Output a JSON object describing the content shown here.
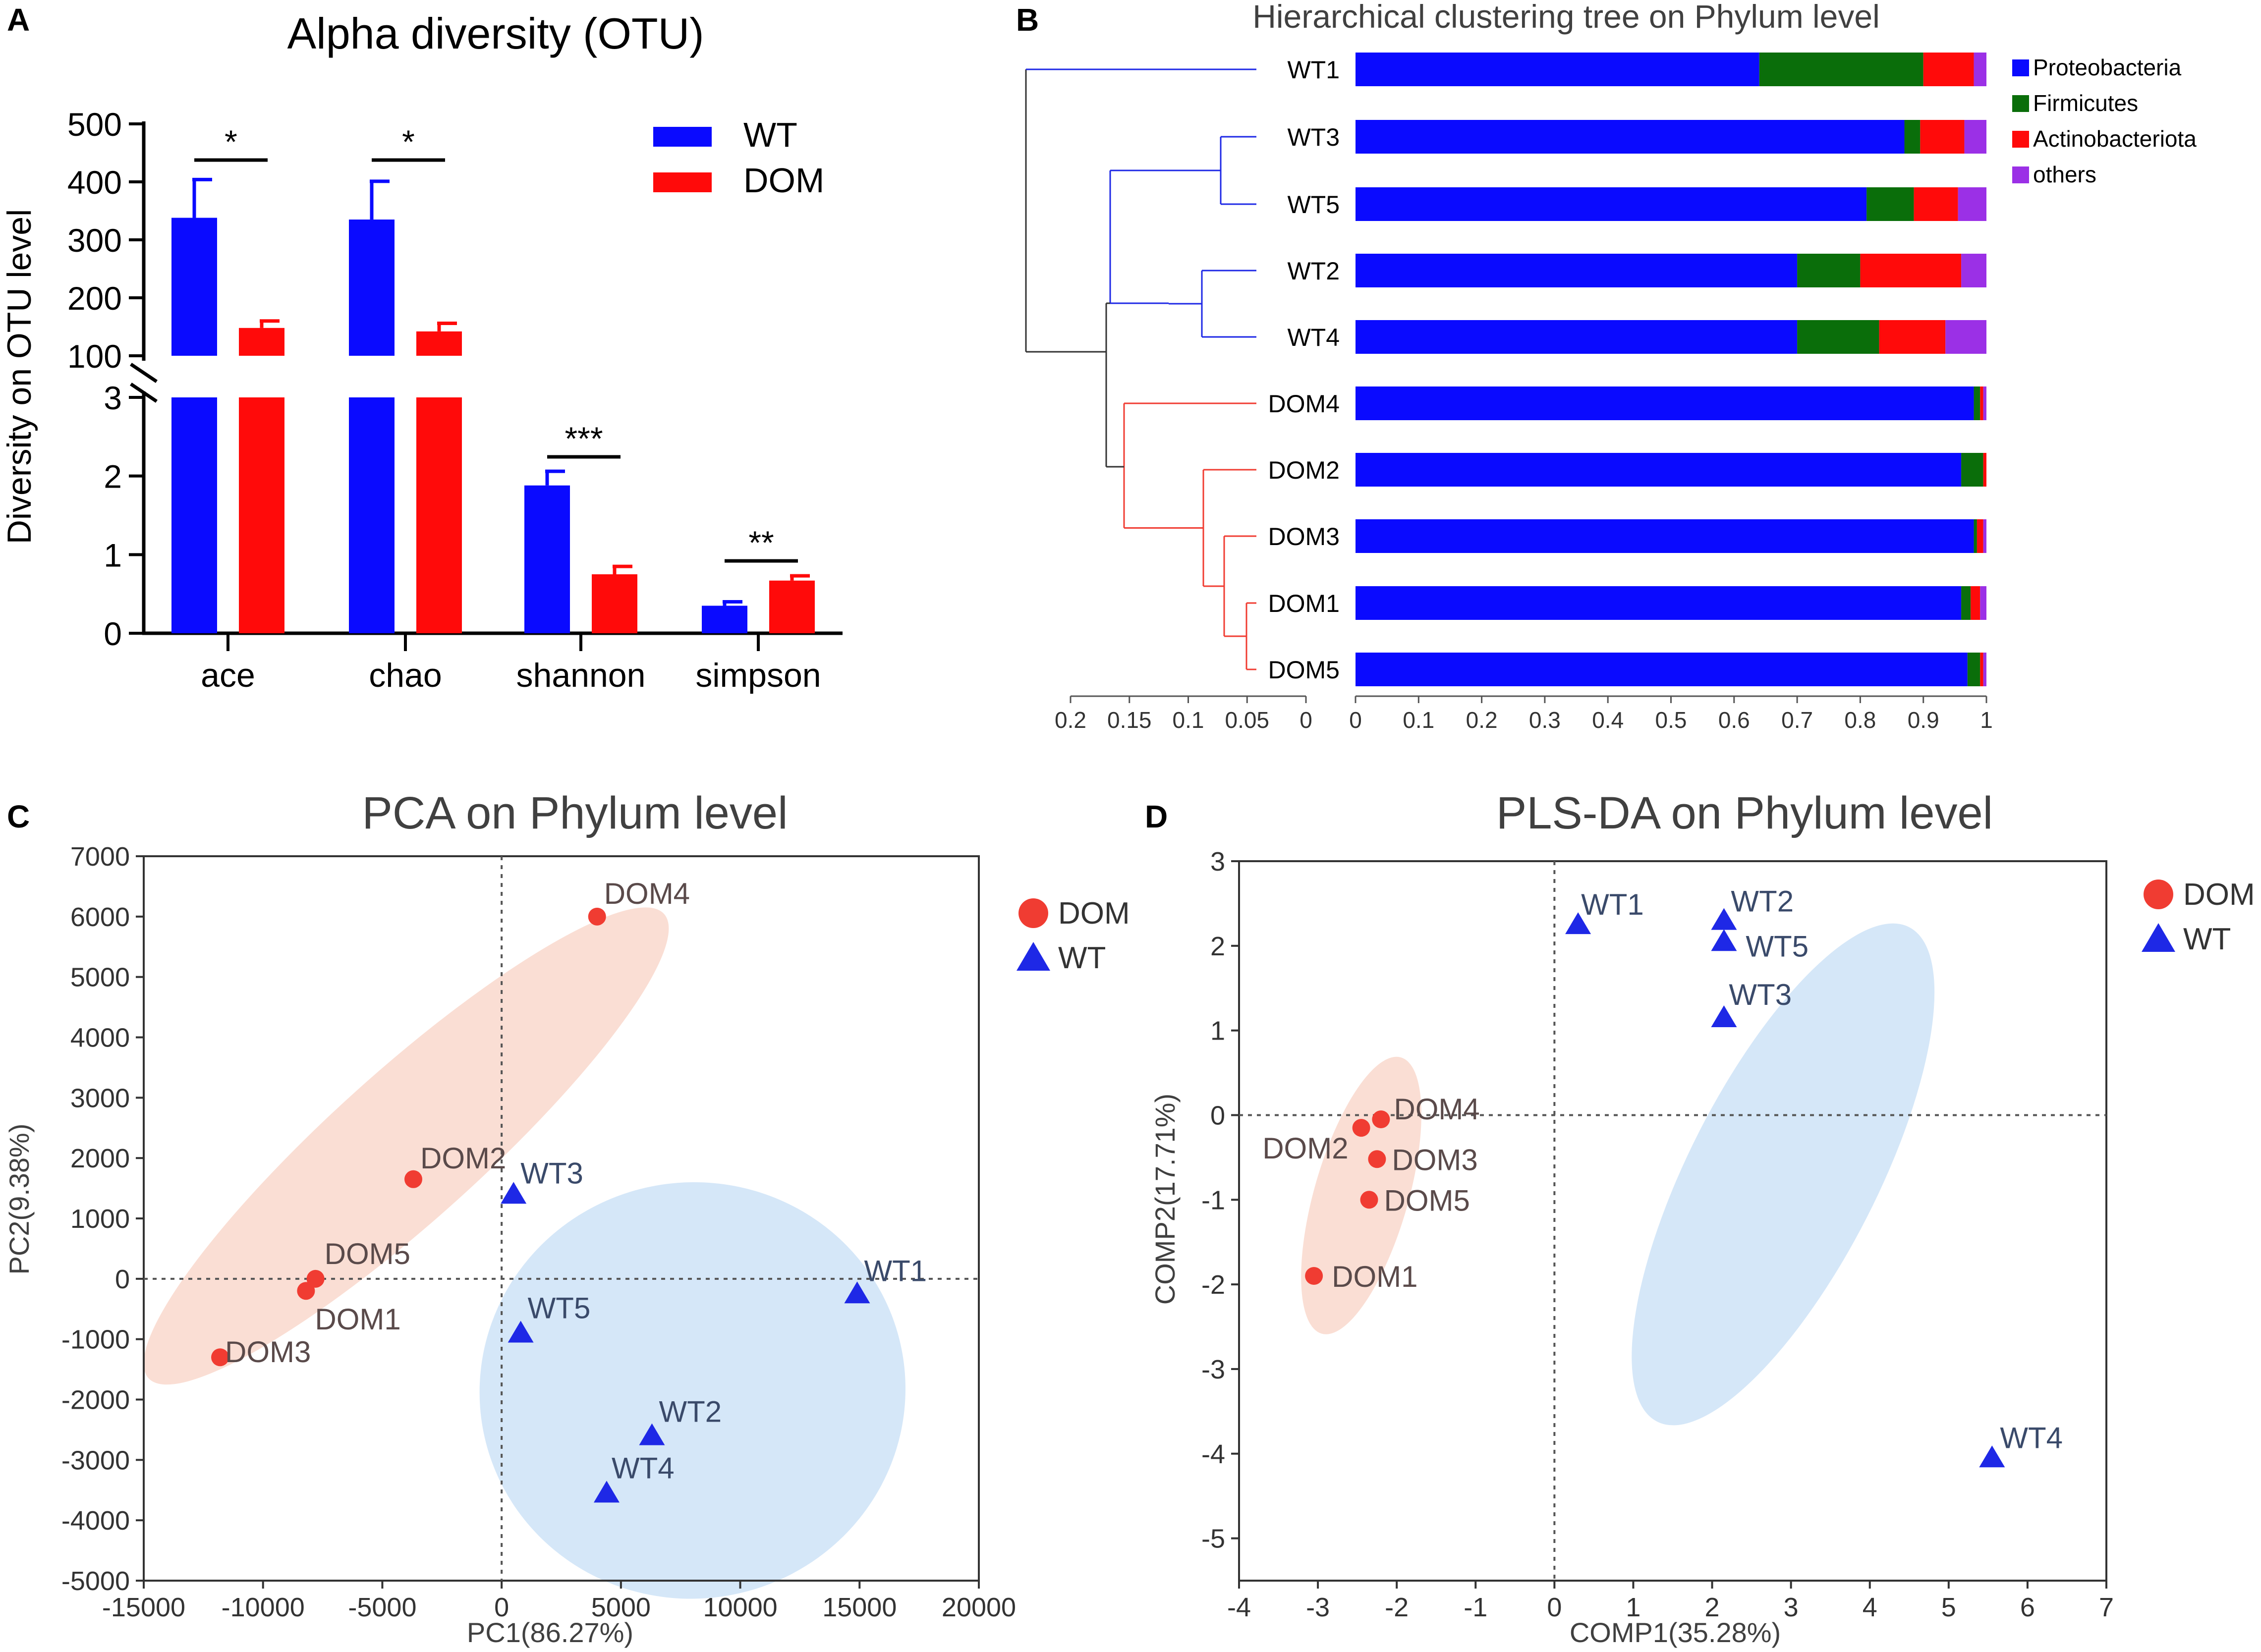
{
  "panels": {
    "A": {
      "letter": "A",
      "chart_data": {
        "type": "bar",
        "title": "Alpha diversity (OTU)",
        "xlabel": "",
        "ylabel": "Diversity on OTU level",
        "categories": [
          "ace",
          "chao",
          "shannon",
          "simpson"
        ],
        "series": [
          {
            "name": "WT",
            "color": "#0a0aff",
            "values": [
              338,
              335,
              1.88,
              0.35
            ],
            "errors": [
              66,
              66,
              0.18,
              0.05
            ]
          },
          {
            "name": "DOM",
            "color": "#ff0a0a",
            "values": [
              148,
              142,
              0.75,
              0.67
            ],
            "errors": [
              12,
              14,
              0.1,
              0.06
            ]
          }
        ],
        "significance": [
          "*",
          "*",
          "***",
          "**"
        ],
        "broken_axis": {
          "lower_ylim": [
            0,
            3
          ],
          "lower_ticks": [
            "0",
            "1",
            "2",
            "3"
          ],
          "upper_ylim": [
            100,
            500
          ],
          "upper_ticks": [
            "100",
            "200",
            "300",
            "400",
            "500"
          ]
        }
      }
    },
    "B": {
      "letter": "B",
      "chart_data": {
        "type": "bar",
        "orientation": "horizontal-stacked",
        "title": "Hierarchical clustering tree on Phylum level",
        "categories": [
          "WT1",
          "WT3",
          "WT5",
          "WT2",
          "WT4",
          "DOM4",
          "DOM2",
          "DOM3",
          "DOM1",
          "DOM5"
        ],
        "series": [
          {
            "name": "Proteobacteria",
            "color": "#0a0aff",
            "values": [
              0.64,
              0.87,
              0.81,
              0.7,
              0.7,
              0.98,
              0.96,
              0.98,
              0.96,
              0.97
            ]
          },
          {
            "name": "Firmicutes",
            "color": "#0a6e0a",
            "values": [
              0.26,
              0.025,
              0.075,
              0.1,
              0.13,
              0.01,
              0.035,
              0.005,
              0.015,
              0.02
            ]
          },
          {
            "name": "Actinobacteriota",
            "color": "#ff0a0a",
            "values": [
              0.08,
              0.07,
              0.07,
              0.16,
              0.105,
              0.005,
              0.005,
              0.01,
              0.015,
              0.005
            ]
          },
          {
            "name": "others",
            "color": "#9b30e6",
            "values": [
              0.02,
              0.035,
              0.045,
              0.04,
              0.065,
              0.005,
              0.0,
              0.005,
              0.01,
              0.005
            ]
          }
        ],
        "xlim": [
          0,
          1
        ],
        "x_ticks": [
          "0",
          "0.1",
          "0.2",
          "0.3",
          "0.4",
          "0.5",
          "0.6",
          "0.7",
          "0.8",
          "0.9",
          "1"
        ],
        "tree_ticks": [
          "0.2",
          "0.15",
          "0.1",
          "0.05",
          "0"
        ]
      }
    },
    "C": {
      "letter": "C",
      "chart_data": {
        "type": "scatter",
        "title": "PCA on Phylum level",
        "xlabel": "PC1(86.27%)",
        "ylabel": "PC2(9.38%)",
        "xlim": [
          -15000,
          20000
        ],
        "ylim": [
          -5000,
          7000
        ],
        "x_ticks": [
          "-15000",
          "-10000",
          "-5000",
          "0",
          "5000",
          "10000",
          "15000",
          "20000"
        ],
        "y_ticks": [
          "-5000",
          "-4000",
          "-3000",
          "-2000",
          "-1000",
          "0",
          "1000",
          "2000",
          "3000",
          "4000",
          "5000",
          "6000",
          "7000"
        ],
        "series": [
          {
            "name": "DOM",
            "marker": "circle",
            "color": "#f03c32",
            "points": [
              {
                "label": "DOM4",
                "x": 4000,
                "y": 6000
              },
              {
                "label": "DOM2",
                "x": -3700,
                "y": 1650
              },
              {
                "label": "DOM5",
                "x": -7800,
                "y": 0
              },
              {
                "label": "DOM1",
                "x": -8200,
                "y": -200
              },
              {
                "label": "DOM3",
                "x": -11800,
                "y": -1300
              }
            ]
          },
          {
            "name": "WT",
            "marker": "triangle",
            "color": "#1e28e6",
            "points": [
              {
                "label": "WT3",
                "x": 500,
                "y": 1400
              },
              {
                "label": "WT1",
                "x": 14900,
                "y": -250
              },
              {
                "label": "WT5",
                "x": 800,
                "y": -900
              },
              {
                "label": "WT2",
                "x": 6300,
                "y": -2600
              },
              {
                "label": "WT4",
                "x": 4400,
                "y": -3550
              }
            ]
          }
        ]
      }
    },
    "D": {
      "letter": "D",
      "chart_data": {
        "type": "scatter",
        "title": "PLS-DA on Phylum level",
        "xlabel": "COMP1(35.28%)",
        "ylabel": "COMP2(17.71%)",
        "xlim": [
          -4,
          7
        ],
        "ylim": [
          -5.5,
          3
        ],
        "x_ticks": [
          "-4",
          "-3",
          "-2",
          "-1",
          "0",
          "1",
          "2",
          "3",
          "4",
          "5",
          "6",
          "7"
        ],
        "y_ticks": [
          "-5",
          "-4",
          "-3",
          "-2",
          "-1",
          "0",
          "1",
          "2",
          "3"
        ],
        "series": [
          {
            "name": "DOM",
            "marker": "circle",
            "color": "#f03c32",
            "points": [
              {
                "label": "DOM4",
                "x": -2.2,
                "y": -0.05
              },
              {
                "label": "DOM2",
                "x": -2.45,
                "y": -0.15
              },
              {
                "label": "DOM3",
                "x": -2.25,
                "y": -0.52
              },
              {
                "label": "DOM5",
                "x": -2.35,
                "y": -1.0
              },
              {
                "label": "DOM1",
                "x": -3.05,
                "y": -1.9
              }
            ]
          },
          {
            "name": "WT",
            "marker": "triangle",
            "color": "#1e28e6",
            "points": [
              {
                "label": "WT1",
                "x": 0.3,
                "y": 2.25
              },
              {
                "label": "WT2",
                "x": 2.15,
                "y": 2.3
              },
              {
                "label": "WT5",
                "x": 2.15,
                "y": 2.05
              },
              {
                "label": "WT3",
                "x": 2.15,
                "y": 1.15
              },
              {
                "label": "WT4",
                "x": 5.55,
                "y": -4.05
              }
            ]
          }
        ]
      }
    }
  }
}
